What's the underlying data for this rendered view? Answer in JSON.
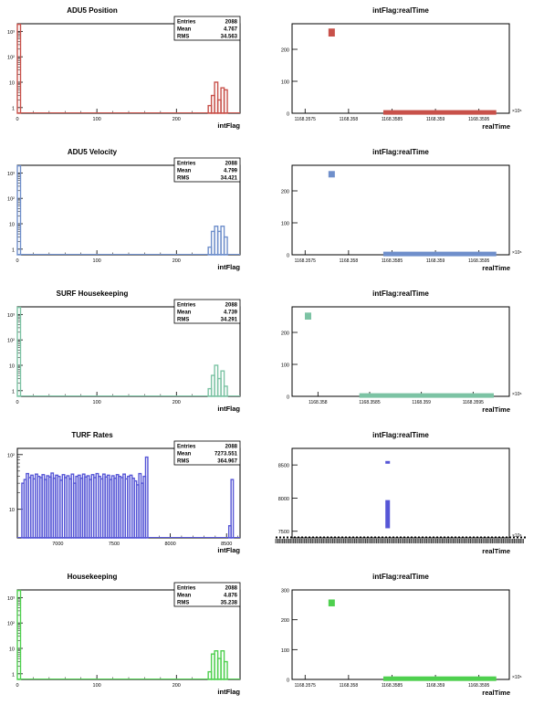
{
  "colors": {
    "adu5_position": "#c8514a",
    "adu5_velocity": "#6f8fcb",
    "surf_housekeeping": "#7cc3a4",
    "turf_rates": "#5656d6",
    "housekeeping": "#4fd04f"
  },
  "chart_data": [
    {
      "type": "bar",
      "title": "ADU5 Position",
      "xlabel": "intFlag",
      "ylabel": "",
      "log_y": true,
      "xlim": [
        0,
        280
      ],
      "ylim": [
        0.6,
        2000
      ],
      "xticks": [
        "0",
        "100",
        "200"
      ],
      "yticks": [
        "1",
        "10",
        "10²",
        "10³"
      ],
      "stats": {
        "entries_label": "Entries",
        "entries": "2088",
        "mean_label": "Mean",
        "mean": "4.767",
        "rms_label": "RMS",
        "rms": "34.563"
      },
      "bins": [
        {
          "x": 0,
          "value": 1900
        },
        {
          "x": 240,
          "value": 1.2
        },
        {
          "x": 244,
          "value": 3
        },
        {
          "x": 248,
          "value": 10
        },
        {
          "x": 252,
          "value": 2
        },
        {
          "x": 256,
          "value": 6
        },
        {
          "x": 260,
          "value": 5
        }
      ]
    },
    {
      "type": "scatter",
      "title": "intFlag:realTime",
      "xlabel": "realTime",
      "ylabel": "",
      "ylim": [
        0,
        280
      ],
      "yticks": [
        "0",
        "100",
        "200"
      ],
      "xticks": [
        "1168.3575",
        "1168.358",
        "1168.3585",
        "1168.359",
        "1168.3595"
      ],
      "x_exponent": "×10⁶",
      "clusters": [
        {
          "x_start": 1168.3578,
          "x_end": 1168.35781,
          "y_min": 240,
          "y_max": 265
        },
        {
          "x_start": 1168.3584,
          "x_end": 1168.3597,
          "y_min": 0,
          "y_max": 4
        }
      ]
    },
    {
      "type": "bar",
      "title": "ADU5 Velocity",
      "xlabel": "intFlag",
      "ylabel": "",
      "log_y": true,
      "xlim": [
        0,
        280
      ],
      "ylim": [
        0.6,
        2000
      ],
      "xticks": [
        "0",
        "100",
        "200"
      ],
      "yticks": [
        "1",
        "10",
        "10²",
        "10³"
      ],
      "stats": {
        "entries_label": "Entries",
        "entries": "2088",
        "mean_label": "Mean",
        "mean": "4.799",
        "rms_label": "RMS",
        "rms": "34.421"
      },
      "bins": [
        {
          "x": 0,
          "value": 1900
        },
        {
          "x": 240,
          "value": 1.2
        },
        {
          "x": 244,
          "value": 5
        },
        {
          "x": 248,
          "value": 8
        },
        {
          "x": 252,
          "value": 5
        },
        {
          "x": 256,
          "value": 8
        },
        {
          "x": 260,
          "value": 3
        }
      ]
    },
    {
      "type": "scatter",
      "title": "intFlag:realTime",
      "xlabel": "realTime",
      "ylabel": "",
      "ylim": [
        0,
        280
      ],
      "yticks": [
        "0",
        "100",
        "200"
      ],
      "xticks": [
        "1168.3575",
        "1168.358",
        "1168.3585",
        "1168.359",
        "1168.3595"
      ],
      "x_exponent": "×10⁶",
      "clusters": [
        {
          "x_start": 1168.3578,
          "x_end": 1168.35781,
          "y_min": 242,
          "y_max": 262
        },
        {
          "x_start": 1168.3584,
          "x_end": 1168.3597,
          "y_min": 0,
          "y_max": 4
        }
      ]
    },
    {
      "type": "bar",
      "title": "SURF Housekeeping",
      "xlabel": "intFlag",
      "ylabel": "",
      "log_y": true,
      "xlim": [
        0,
        280
      ],
      "ylim": [
        0.6,
        2000
      ],
      "xticks": [
        "0",
        "100",
        "200"
      ],
      "yticks": [
        "1",
        "10",
        "10²",
        "10³"
      ],
      "stats": {
        "entries_label": "Entries",
        "entries": "2088",
        "mean_label": "Mean",
        "mean": "4.739",
        "rms_label": "RMS",
        "rms": "34.291"
      },
      "bins": [
        {
          "x": 0,
          "value": 1900
        },
        {
          "x": 240,
          "value": 1.2
        },
        {
          "x": 244,
          "value": 4
        },
        {
          "x": 248,
          "value": 10
        },
        {
          "x": 252,
          "value": 3
        },
        {
          "x": 256,
          "value": 6
        },
        {
          "x": 260,
          "value": 1.5
        }
      ]
    },
    {
      "type": "scatter",
      "title": "intFlag:realTime",
      "xlabel": "realTime",
      "ylabel": "",
      "ylim": [
        0,
        280
      ],
      "yticks": [
        "0",
        "100",
        "200"
      ],
      "xticks": [
        "1168.358",
        "1168.3585",
        "1168.359",
        "1168.3595"
      ],
      "x_exponent": "×10⁶",
      "clusters": [
        {
          "x_start": 1168.3579,
          "x_end": 1168.35791,
          "y_min": 240,
          "y_max": 262
        },
        {
          "x_start": 1168.3584,
          "x_end": 1168.3597,
          "y_min": 0,
          "y_max": 4
        }
      ]
    },
    {
      "type": "bar",
      "title": "TURF Rates",
      "xlabel": "intFlag",
      "ylabel": "",
      "log_y": true,
      "xlim": [
        6640,
        8620
      ],
      "ylim": [
        3,
        130
      ],
      "xticks": [
        "7000",
        "7500",
        "8000",
        "8500"
      ],
      "yticks": [
        "10",
        "10²"
      ],
      "stats": {
        "entries_label": "Entries",
        "entries": "2088",
        "mean_label": "Mean",
        "mean": "7273.551",
        "rms_label": "RMS",
        "rms": "364.967"
      },
      "bins": [
        {
          "x": 6680,
          "value": 30
        },
        {
          "x": 6700,
          "value": 35
        },
        {
          "x": 6720,
          "value": 45
        },
        {
          "x": 6740,
          "value": 38
        },
        {
          "x": 6760,
          "value": 42
        },
        {
          "x": 6780,
          "value": 36
        },
        {
          "x": 6800,
          "value": 44
        },
        {
          "x": 6820,
          "value": 40
        },
        {
          "x": 6840,
          "value": 38
        },
        {
          "x": 6860,
          "value": 43
        },
        {
          "x": 6880,
          "value": 35
        },
        {
          "x": 6900,
          "value": 41
        },
        {
          "x": 6920,
          "value": 39
        },
        {
          "x": 6940,
          "value": 46
        },
        {
          "x": 6960,
          "value": 37
        },
        {
          "x": 6980,
          "value": 42
        },
        {
          "x": 7000,
          "value": 40
        },
        {
          "x": 7020,
          "value": 34
        },
        {
          "x": 7040,
          "value": 43
        },
        {
          "x": 7060,
          "value": 38
        },
        {
          "x": 7080,
          "value": 41
        },
        {
          "x": 7100,
          "value": 36
        },
        {
          "x": 7120,
          "value": 44
        },
        {
          "x": 7140,
          "value": 30
        },
        {
          "x": 7160,
          "value": 40
        },
        {
          "x": 7180,
          "value": 42
        },
        {
          "x": 7200,
          "value": 37
        },
        {
          "x": 7220,
          "value": 44
        },
        {
          "x": 7240,
          "value": 39
        },
        {
          "x": 7260,
          "value": 41
        },
        {
          "x": 7280,
          "value": 35
        },
        {
          "x": 7300,
          "value": 43
        },
        {
          "x": 7320,
          "value": 38
        },
        {
          "x": 7340,
          "value": 45
        },
        {
          "x": 7360,
          "value": 40
        },
        {
          "x": 7380,
          "value": 36
        },
        {
          "x": 7400,
          "value": 44
        },
        {
          "x": 7420,
          "value": 39
        },
        {
          "x": 7440,
          "value": 42
        },
        {
          "x": 7460,
          "value": 35
        },
        {
          "x": 7480,
          "value": 41
        },
        {
          "x": 7500,
          "value": 37
        },
        {
          "x": 7520,
          "value": 43
        },
        {
          "x": 7540,
          "value": 40
        },
        {
          "x": 7560,
          "value": 38
        },
        {
          "x": 7580,
          "value": 44
        },
        {
          "x": 7600,
          "value": 36
        },
        {
          "x": 7620,
          "value": 40
        },
        {
          "x": 7640,
          "value": 42
        },
        {
          "x": 7660,
          "value": 37
        },
        {
          "x": 7680,
          "value": 33
        },
        {
          "x": 7700,
          "value": 28
        },
        {
          "x": 7720,
          "value": 45
        },
        {
          "x": 7740,
          "value": 30
        },
        {
          "x": 7760,
          "value": 40
        },
        {
          "x": 7780,
          "value": 90
        },
        {
          "x": 8520,
          "value": 5
        },
        {
          "x": 8540,
          "value": 35
        }
      ]
    },
    {
      "type": "scatter",
      "title": "intFlag:realTime",
      "xlabel": "realTime",
      "ylabel": "",
      "ylim": [
        7400,
        8750
      ],
      "yticks": [
        "7500",
        "8000",
        "8500"
      ],
      "xticks": [],
      "x_exponent": "×10⁶",
      "clusters": [
        {
          "x_frac": 0.44,
          "y_min": 8525,
          "y_max": 8560
        },
        {
          "x_frac": 0.44,
          "y_min": 7545,
          "y_max": 7970
        }
      ]
    },
    {
      "type": "bar",
      "title": "Housekeeping",
      "xlabel": "intFlag",
      "ylabel": "",
      "log_y": true,
      "xlim": [
        0,
        280
      ],
      "ylim": [
        0.6,
        2000
      ],
      "xticks": [
        "0",
        "100",
        "200"
      ],
      "yticks": [
        "1",
        "10",
        "10²",
        "10³"
      ],
      "stats": {
        "entries_label": "Entries",
        "entries": "2088",
        "mean_label": "Mean",
        "mean": "4.876",
        "rms_label": "RMS",
        "rms": "35.238"
      },
      "bins": [
        {
          "x": 0,
          "value": 1900
        },
        {
          "x": 240,
          "value": 1.2
        },
        {
          "x": 244,
          "value": 6
        },
        {
          "x": 248,
          "value": 8
        },
        {
          "x": 252,
          "value": 4
        },
        {
          "x": 256,
          "value": 8
        },
        {
          "x": 260,
          "value": 3
        }
      ]
    },
    {
      "type": "scatter",
      "title": "intFlag:realTime",
      "xlabel": "realTime",
      "ylabel": "",
      "ylim": [
        0,
        300
      ],
      "yticks": [
        "0",
        "100",
        "200",
        "300"
      ],
      "xticks": [
        "1168.3575",
        "1168.358",
        "1168.3585",
        "1168.359",
        "1168.3595"
      ],
      "x_exponent": "×10⁶",
      "clusters": [
        {
          "x_start": 1168.3578,
          "x_end": 1168.35781,
          "y_min": 245,
          "y_max": 268
        },
        {
          "x_start": 1168.3584,
          "x_end": 1168.3597,
          "y_min": 0,
          "y_max": 4
        }
      ]
    }
  ]
}
